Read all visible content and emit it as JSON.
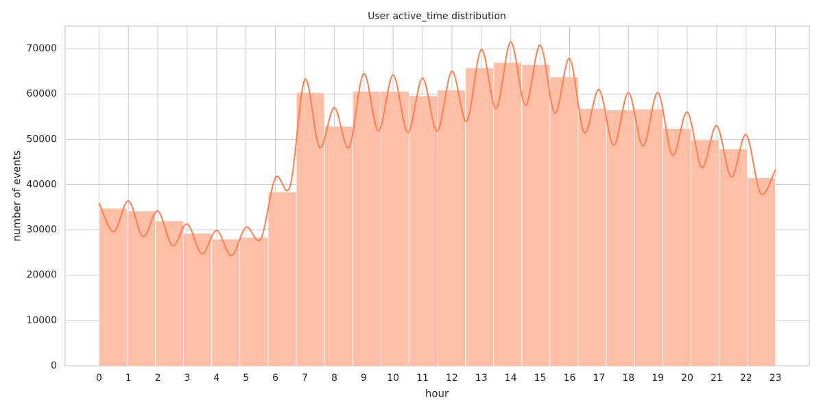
{
  "chart_data": {
    "type": "histogram",
    "title": "User active_time distribution",
    "x_label": "hour",
    "y_label": "number of events",
    "bins": [
      0,
      0.9583,
      1.9167,
      2.875,
      3.8333,
      4.7917,
      5.75,
      6.7083,
      7.6667,
      8.625,
      9.5833,
      10.5417,
      11.5,
      12.4583,
      13.4167,
      14.375,
      15.3333,
      16.2917,
      17.25,
      18.2083,
      19.1667,
      20.125,
      21.0833,
      22.0417,
      23
    ],
    "counts": [
      34800,
      34200,
      32000,
      29300,
      28000,
      28400,
      38400,
      60300,
      52900,
      60600,
      60600,
      59600,
      60900,
      65800,
      67000,
      66500,
      63800,
      56800,
      56500,
      56700,
      52400,
      49900,
      47900,
      41500
    ],
    "color": "#ffbea6",
    "line": {
      "color": "#ff7f50",
      "x": [
        0,
        0.5,
        1,
        1.5,
        2,
        2.5,
        3,
        3.5,
        4,
        4.5,
        5,
        5.5,
        6,
        6.5,
        7,
        7.5,
        8,
        8.5,
        9,
        9.5,
        10,
        10.5,
        11,
        11.5,
        12,
        12.5,
        13,
        13.5,
        14,
        14.5,
        15,
        15.5,
        16,
        16.5,
        17,
        17.5,
        18,
        18.5,
        19,
        19.5,
        20,
        20.5,
        21,
        21.5,
        22,
        22.5,
        23
      ],
      "values": [
        36000,
        29600,
        36400,
        28500,
        34200,
        26500,
        31300,
        24700,
        29900,
        24300,
        30600,
        28000,
        41500,
        39700,
        63200,
        48200,
        57000,
        48200,
        64500,
        51800,
        64200,
        51500,
        63500,
        51800,
        65000,
        54000,
        69800,
        56800,
        71500,
        57500,
        70800,
        55800,
        67800,
        51500,
        61000,
        48700,
        60300,
        48500,
        60300,
        46500,
        56000,
        43800,
        53000,
        41700,
        51000,
        38000,
        43300
      ]
    },
    "xlim": [
      -1.15,
      24.15
    ],
    "xticks": [
      0,
      1,
      2,
      3,
      4,
      5,
      6,
      7,
      8,
      9,
      10,
      11,
      12,
      13,
      14,
      15,
      16,
      17,
      18,
      19,
      20,
      21,
      22,
      23
    ],
    "ylim": [
      0,
      75000
    ],
    "yticks": [
      0,
      10000,
      20000,
      30000,
      40000,
      50000,
      60000,
      70000
    ],
    "grid": true
  }
}
